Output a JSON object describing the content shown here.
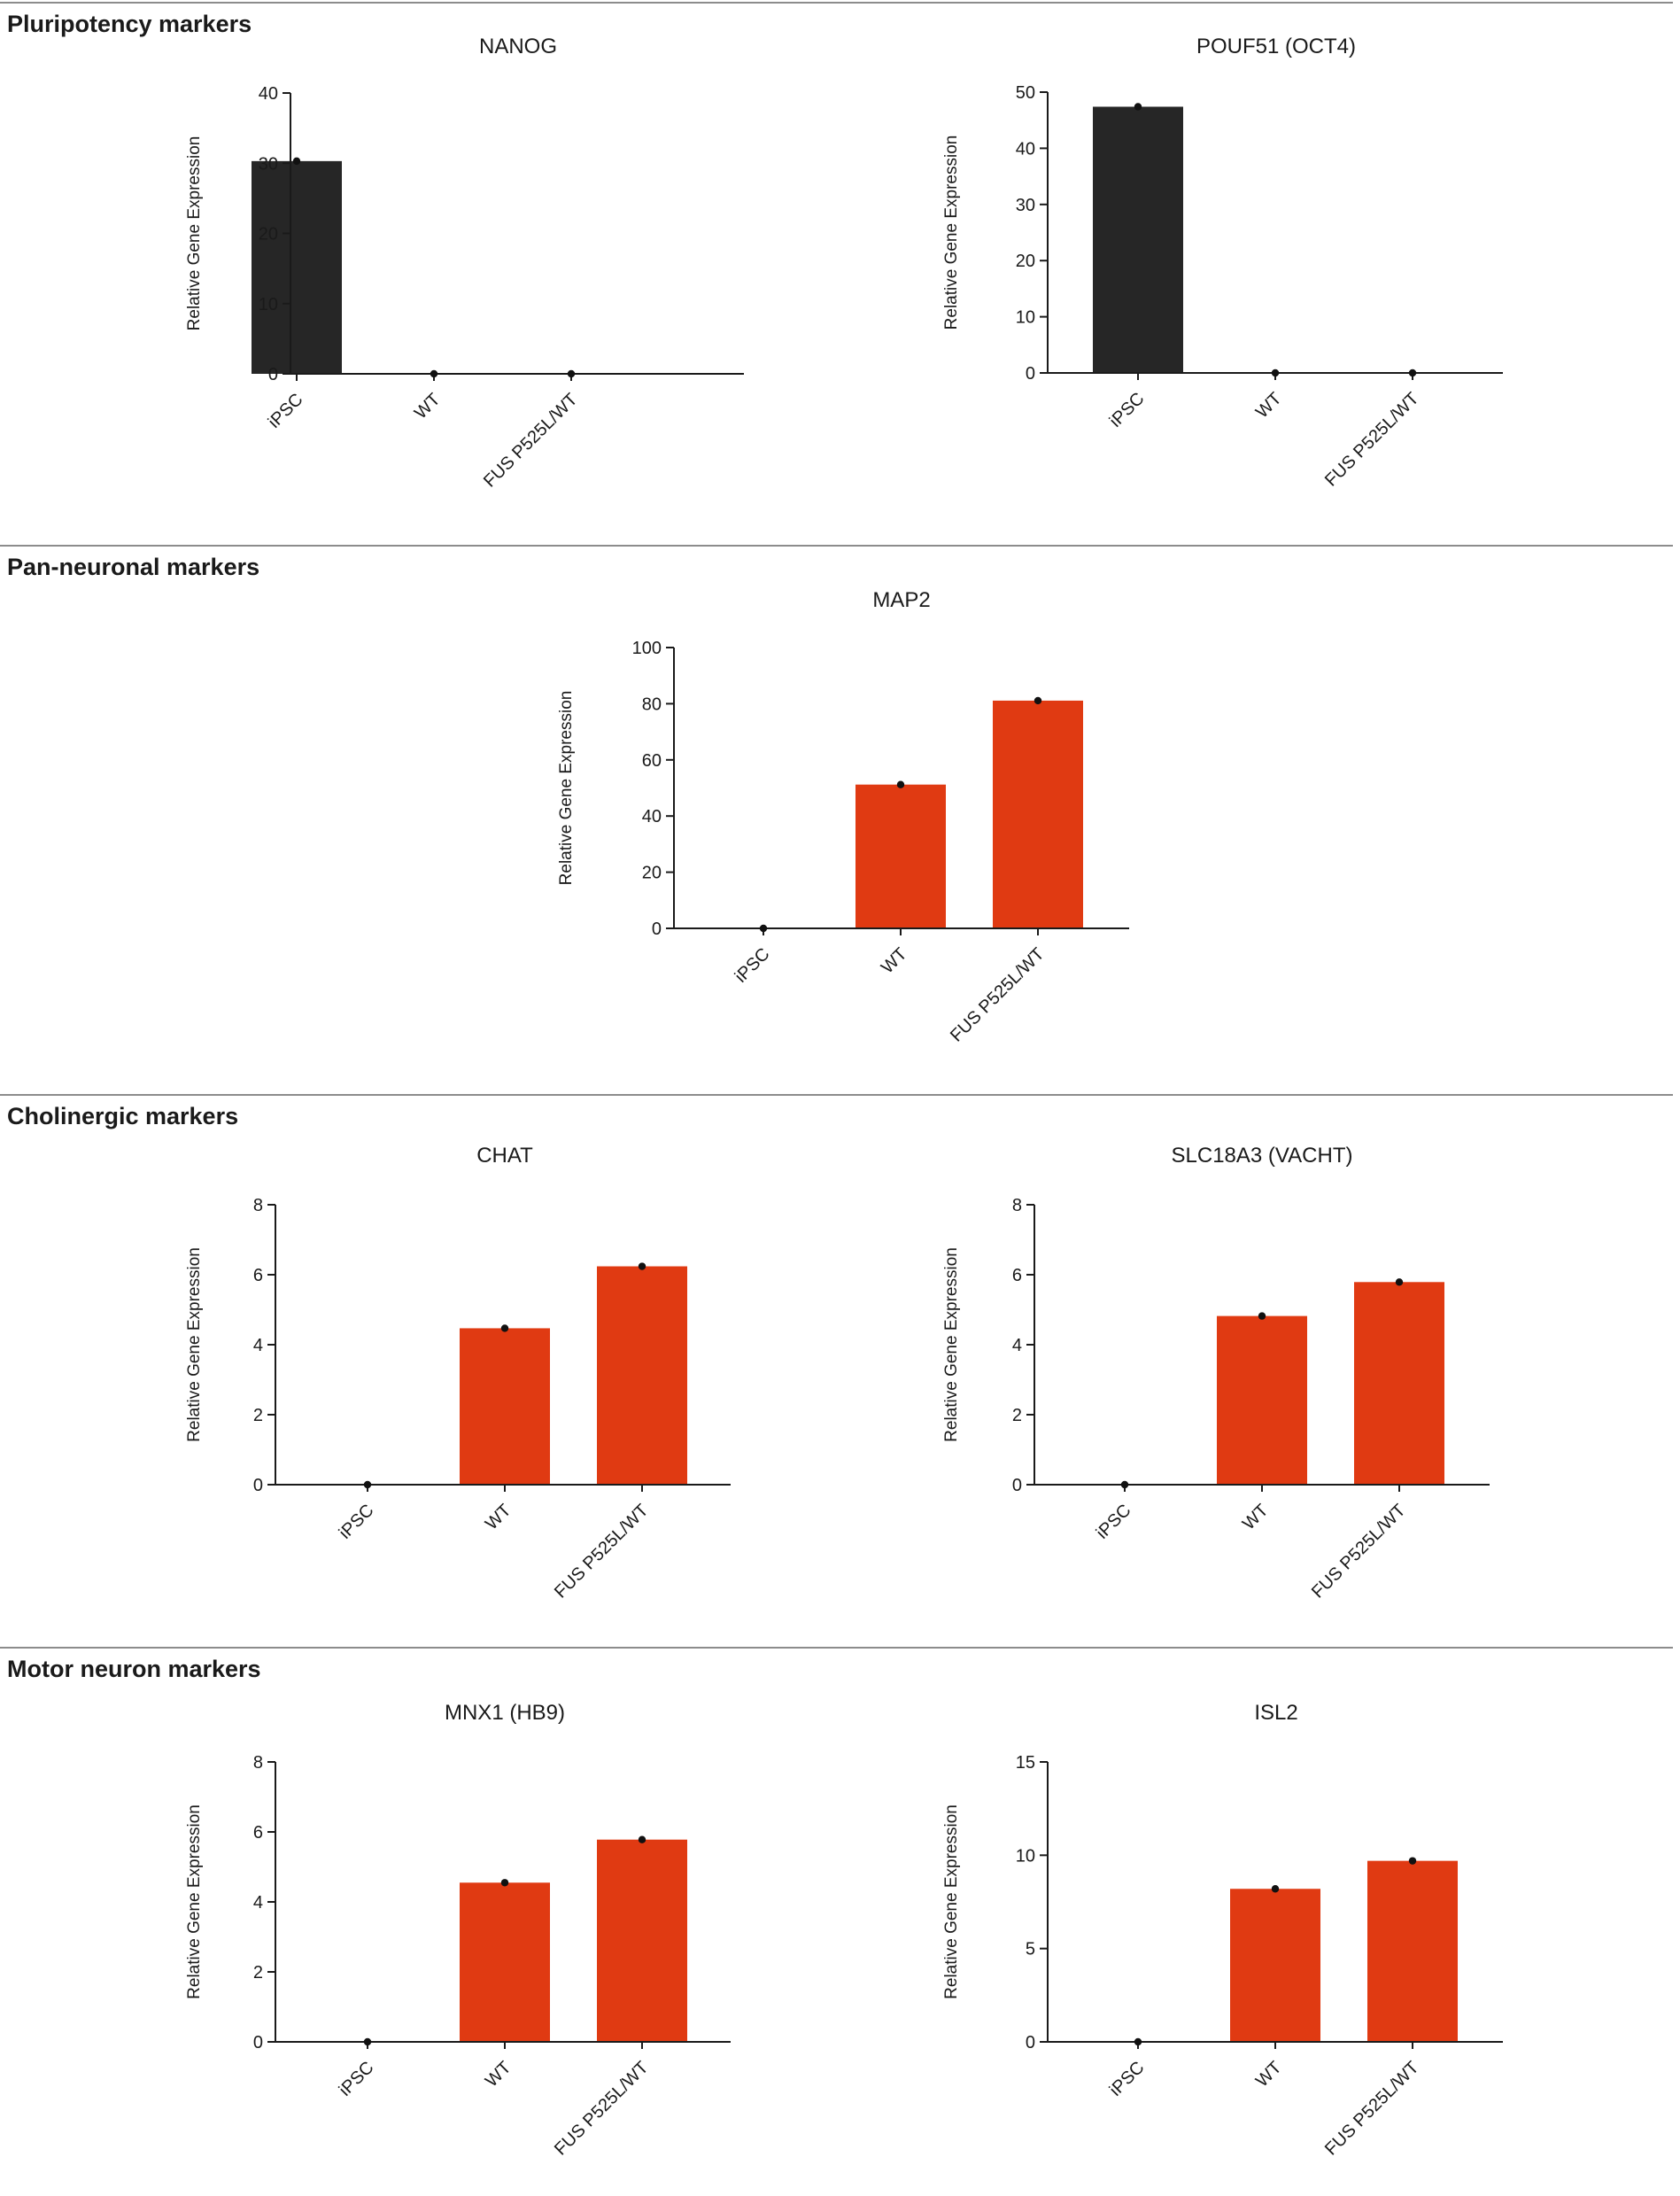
{
  "colors": {
    "ipsc_bar": "#262626",
    "neuron_bar": "#e03a12",
    "axis": "#1a1a1a",
    "rule": "#8c8c8c"
  },
  "sections": [
    {
      "title": "Pluripotency markers"
    },
    {
      "title": "Pan-neuronal markers"
    },
    {
      "title": "Cholinergic markers"
    },
    {
      "title": "Motor neuron markers"
    }
  ],
  "chart_data": [
    {
      "type": "bar",
      "title": "NANOG",
      "ylabel": "Relative Gene Expression",
      "categories": [
        "iPSC",
        "WT",
        "FUS P525L/WT"
      ],
      "values": [
        30.3,
        0,
        0
      ],
      "ylim": [
        0,
        40
      ],
      "yticks": [
        "0",
        "10",
        "20",
        "30",
        "40"
      ],
      "bar_colors": [
        "#262626",
        "#262626",
        "#262626"
      ]
    },
    {
      "type": "bar",
      "title": "POUF51 (OCT4)",
      "ylabel": "Relative Gene Expression",
      "categories": [
        "iPSC",
        "WT",
        "FUS P525L/WT"
      ],
      "values": [
        47.4,
        0,
        0
      ],
      "ylim": [
        0,
        50
      ],
      "yticks": [
        "0",
        "10",
        "20",
        "30",
        "40",
        "50"
      ],
      "bar_colors": [
        "#262626",
        "#262626",
        "#262626"
      ]
    },
    {
      "type": "bar",
      "title": "MAP2",
      "ylabel": "Relative Gene Expression",
      "categories": [
        "iPSC",
        "WT",
        "FUS P525L/WT"
      ],
      "values": [
        0,
        51.2,
        81.1
      ],
      "ylim": [
        0,
        100
      ],
      "yticks": [
        "0",
        "20",
        "40",
        "60",
        "80",
        "100"
      ],
      "bar_colors": [
        "#e03a12",
        "#e03a12",
        "#e03a12"
      ]
    },
    {
      "type": "bar",
      "title": "CHAT",
      "ylabel": "Relative Gene Expression",
      "categories": [
        "iPSC",
        "WT",
        "FUS P525L/WT"
      ],
      "values": [
        0,
        4.47,
        6.24
      ],
      "ylim": [
        0,
        8
      ],
      "yticks": [
        "0",
        "2",
        "4",
        "6",
        "8"
      ],
      "bar_colors": [
        "#e03a12",
        "#e03a12",
        "#e03a12"
      ]
    },
    {
      "type": "bar",
      "title": "SLC18A3 (VACHT)",
      "ylabel": "Relative Gene Expression",
      "categories": [
        "iPSC",
        "WT",
        "FUS P525L/WT"
      ],
      "values": [
        0,
        4.82,
        5.79
      ],
      "ylim": [
        0,
        8
      ],
      "yticks": [
        "0",
        "2",
        "4",
        "6",
        "8"
      ],
      "bar_colors": [
        "#e03a12",
        "#e03a12",
        "#e03a12"
      ]
    },
    {
      "type": "bar",
      "title": "MNX1 (HB9)",
      "ylabel": "Relative Gene Expression",
      "categories": [
        "iPSC",
        "WT",
        "FUS P525L/WT"
      ],
      "values": [
        0,
        4.55,
        5.78
      ],
      "ylim": [
        0,
        8
      ],
      "yticks": [
        "0",
        "2",
        "4",
        "6",
        "8"
      ],
      "bar_colors": [
        "#e03a12",
        "#e03a12",
        "#e03a12"
      ]
    },
    {
      "type": "bar",
      "title": "ISL2",
      "ylabel": "Relative Gene Expression",
      "categories": [
        "iPSC",
        "WT",
        "FUS P525L/WT"
      ],
      "values": [
        0,
        8.2,
        9.7
      ],
      "ylim": [
        0,
        15
      ],
      "yticks": [
        "0",
        "5",
        "10",
        "15"
      ],
      "bar_colors": [
        "#e03a12",
        "#e03a12",
        "#e03a12"
      ]
    }
  ]
}
